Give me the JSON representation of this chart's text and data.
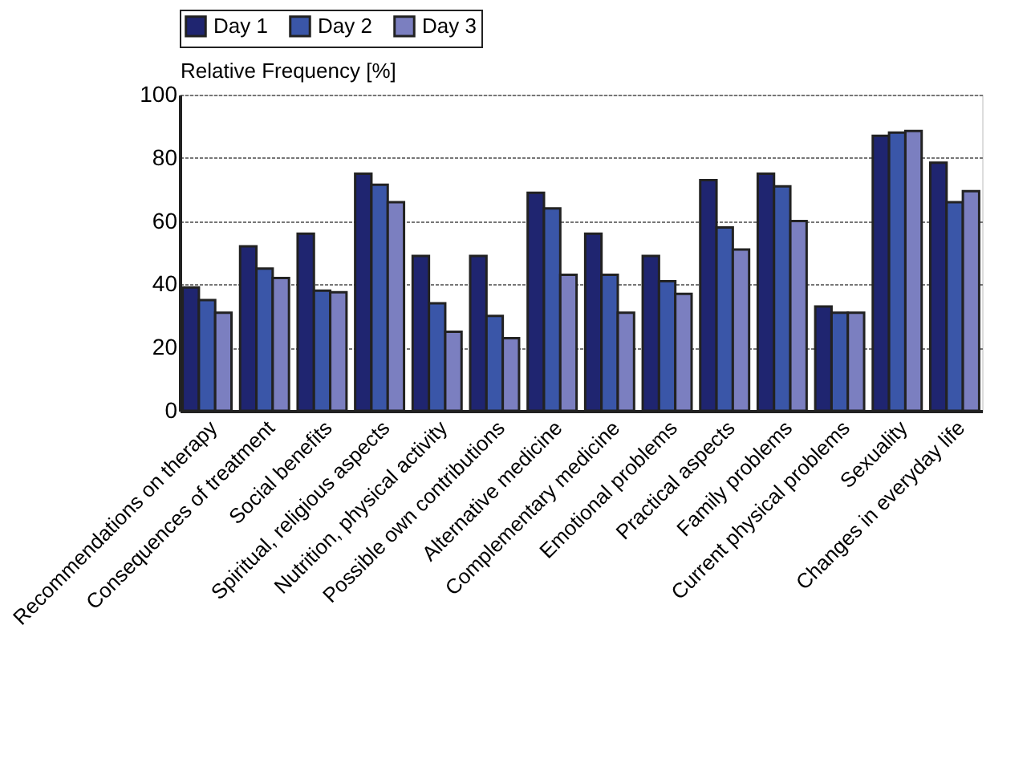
{
  "chart_data": {
    "type": "bar",
    "ylabel": "Relative Frequency [%]",
    "categories": [
      "Recommendations on therapy",
      "Consequences of treatment",
      "Social benefits",
      "Spiritual, religious aspects",
      "Nutrition, physical activity",
      "Possible own contributions",
      "Alternative medicine",
      "Complementary medicine",
      "Emotional problems",
      "Practical aspects",
      "Family problems",
      "Current physical problems",
      "Sexuality",
      "Changes in everyday life"
    ],
    "series": [
      {
        "name": "Day 1",
        "color": "#1f2570",
        "values": [
          39,
          52,
          56,
          75,
          49,
          49,
          69,
          56,
          49,
          73,
          75,
          33,
          87,
          78.5
        ]
      },
      {
        "name": "Day 2",
        "color": "#3a56a8",
        "values": [
          35,
          45,
          38,
          71.5,
          34,
          30,
          64,
          43,
          41,
          58,
          71,
          31,
          88,
          66
        ]
      },
      {
        "name": "Day 3",
        "color": "#7b7fc0",
        "values": [
          31,
          42,
          37.5,
          66,
          25,
          23,
          43,
          31,
          37,
          51,
          60,
          31,
          88.5,
          69.5
        ]
      }
    ],
    "ylim": [
      0,
      100
    ],
    "yticks": [
      0,
      20,
      40,
      60,
      80,
      100
    ],
    "grid": "y",
    "legend": "top"
  }
}
